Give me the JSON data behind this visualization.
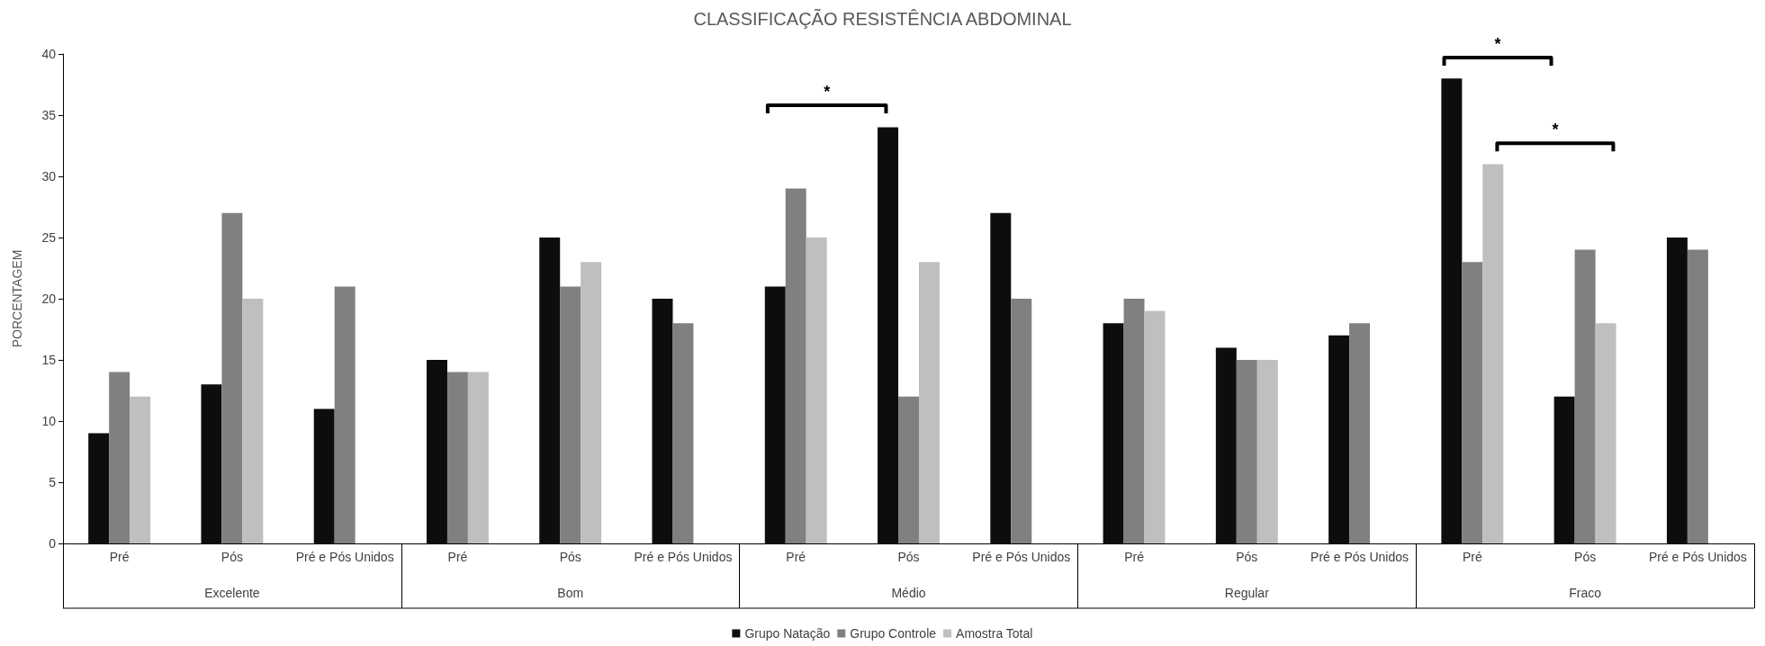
{
  "chart_data": {
    "type": "bar",
    "title": "CLASSIFICAÇÃO RESISTÊNCIA ABDOMINAL",
    "ylabel": "PORCENTAGEM",
    "categories": [
      "Pré",
      "Pós",
      "Pré e Pós Unidos",
      "Pré",
      "Pós",
      "Pré e Pós Unidos",
      "Pré",
      "Pós",
      "Pré e Pós Unidos",
      "Pré",
      "Pós",
      "Pré e Pós Unidos",
      "Pré",
      "Pós",
      "Pré e Pós Unidos"
    ],
    "series": [
      {
        "name": "Grupo Natação",
        "color": "#0d0d0d",
        "values": [
          9,
          13,
          11,
          15,
          25,
          20,
          21,
          34,
          27,
          18,
          16,
          17,
          38,
          12,
          25
        ]
      },
      {
        "name": "Grupo Controle",
        "color": "#808080",
        "values": [
          14,
          27,
          21,
          14,
          21,
          18,
          29,
          12,
          20,
          20,
          15,
          18,
          23,
          24,
          24
        ]
      },
      {
        "name": "Amostra Total",
        "color": "#bfbfbf",
        "values": [
          12,
          20,
          null,
          14,
          23,
          null,
          25,
          23,
          null,
          19,
          15,
          null,
          31,
          18,
          null
        ]
      }
    ],
    "annotations": [
      "Excelente",
      "Bom",
      "Médio",
      "Regular",
      "Fraco",
      "*",
      "*",
      "*"
    ],
    "ylim": [
      0,
      40
    ],
    "yticks": [
      0,
      5,
      10,
      15,
      20,
      25,
      30,
      35,
      40
    ],
    "grid": false,
    "legend": "bottom"
  }
}
